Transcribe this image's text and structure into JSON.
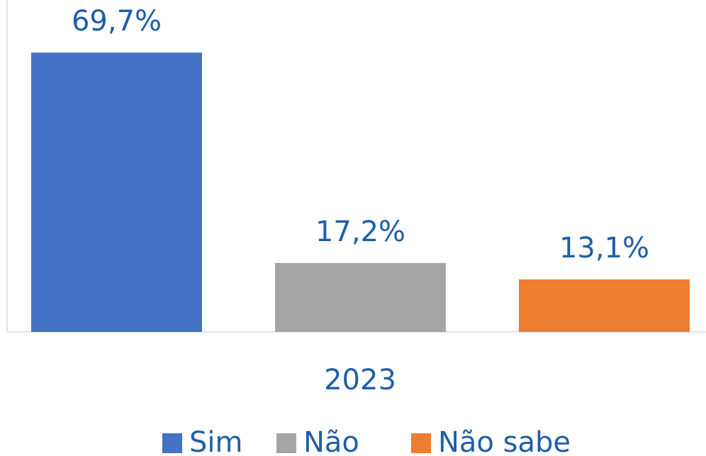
{
  "chart_data": {
    "type": "bar",
    "categories": [
      "2023"
    ],
    "series": [
      {
        "name": "Sim",
        "color": "#4472c4",
        "values": [
          69.7
        ],
        "value_labels": [
          "69,7%"
        ]
      },
      {
        "name": "Não",
        "color": "#a5a5a5",
        "values": [
          17.2
        ],
        "value_labels": [
          "17,2%"
        ]
      },
      {
        "name": "Não sabe",
        "color": "#ed7d31",
        "values": [
          13.1
        ],
        "value_labels": [
          "13,1%"
        ]
      }
    ],
    "ylim": [
      0,
      80
    ],
    "legend": "bottom"
  }
}
